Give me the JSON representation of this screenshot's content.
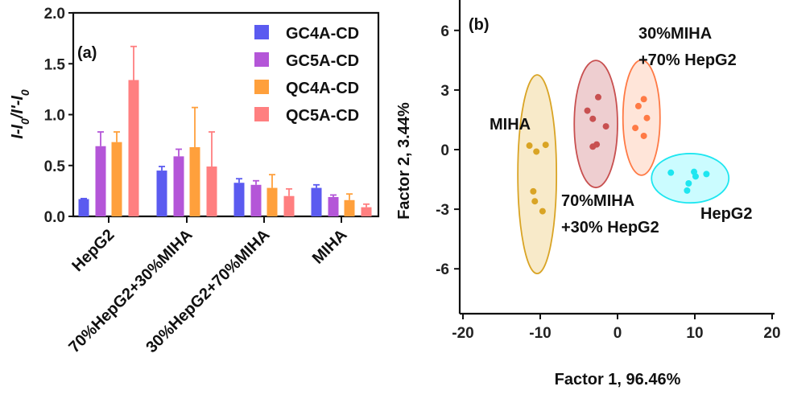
{
  "chart_data": [
    {
      "type": "bar",
      "panel_label": "(a)",
      "ylabel": "I-I0/I'-I0",
      "xlabel": "",
      "ylim": [
        0,
        2.0
      ],
      "yticks": [
        "0.0",
        "0.5",
        "1.0",
        "1.5",
        "2.0"
      ],
      "categories": [
        "HepG2",
        "70%HepG2+30%MIHA",
        "30%HepG2+70%MIHA",
        "MIHA"
      ],
      "legend_position": "top-right",
      "series": [
        {
          "name": "GC4A-CD",
          "color": "#5b5bf0",
          "values": [
            0.17,
            0.45,
            0.33,
            0.28
          ],
          "error_upper": [
            0.175,
            0.49,
            0.37,
            0.31
          ]
        },
        {
          "name": "GC5A-CD",
          "color": "#b456d8",
          "values": [
            0.69,
            0.59,
            0.31,
            0.19
          ],
          "error_upper": [
            0.83,
            0.66,
            0.35,
            0.21
          ]
        },
        {
          "name": "QC4A-CD",
          "color": "#ffa03c",
          "values": [
            0.73,
            0.68,
            0.28,
            0.16
          ],
          "error_upper": [
            0.83,
            1.07,
            0.41,
            0.22
          ]
        },
        {
          "name": "QC5A-CD",
          "color": "#ff7f80",
          "values": [
            1.34,
            0.49,
            0.2,
            0.09
          ],
          "error_upper": [
            1.67,
            0.83,
            0.27,
            0.12
          ]
        }
      ]
    },
    {
      "type": "scatter",
      "panel_label": "(b)",
      "xlabel": "Factor 1, 96.46%",
      "ylabel": "Factor 2, 3.44%",
      "xlim": [
        -20,
        20
      ],
      "ylim": [
        -8.2,
        7.5
      ],
      "xticks": [
        "-20",
        "-10",
        "0",
        "10",
        "20"
      ],
      "yticks": [
        "-6",
        "-3",
        "0",
        "3",
        "6"
      ],
      "groups": [
        {
          "label": [
            "MIHA"
          ],
          "color": "#d9a425",
          "fill": "#f7e6bf",
          "points": [
            [
              -11.4,
              0.2
            ],
            [
              -10.5,
              -0.1
            ],
            [
              -9.3,
              0.24
            ],
            [
              -10.9,
              -2.1
            ],
            [
              -10.7,
              -2.6
            ],
            [
              -9.7,
              -3.1
            ]
          ],
          "ellipse": {
            "cx": -10.4,
            "cy": -1.24,
            "rx": 2.5,
            "ry": 5.0
          }
        },
        {
          "label": [
            "70%MIHA",
            "+30% HepG2"
          ],
          "color": "#c85050",
          "fill": "#ebc6c8",
          "points": [
            [
              -2.5,
              2.64
            ],
            [
              -3.9,
              1.96
            ],
            [
              -3.2,
              1.55
            ],
            [
              -1.5,
              1.17
            ],
            [
              -3.2,
              0.15
            ],
            [
              -2.7,
              0.26
            ]
          ],
          "ellipse": {
            "cx": -2.8,
            "cy": 1.29,
            "rx": 2.8,
            "ry": 3.2
          }
        },
        {
          "label": [
            "30%MIHA",
            "+70% HepG2"
          ],
          "color": "#ff7a45",
          "fill": "#ffe0d2",
          "points": [
            [
              3.4,
              2.54
            ],
            [
              2.7,
              2.19
            ],
            [
              3.8,
              1.59
            ],
            [
              2.3,
              1.09
            ],
            [
              3.4,
              0.69
            ]
          ],
          "ellipse": {
            "cx": 3.1,
            "cy": 1.61,
            "rx": 2.4,
            "ry": 2.9
          }
        },
        {
          "label": [
            "HepG2"
          ],
          "color": "#1ee6f0",
          "fill": "#c2fbff",
          "points": [
            [
              6.9,
              -1.16
            ],
            [
              9.9,
              -1.12
            ],
            [
              10.1,
              -1.35
            ],
            [
              11.5,
              -1.23
            ],
            [
              9.2,
              -1.7
            ],
            [
              9.0,
              -2.06
            ]
          ],
          "ellipse": {
            "cx": 9.4,
            "cy": -1.44,
            "rx": 5.0,
            "ry": 1.24
          }
        }
      ]
    }
  ]
}
